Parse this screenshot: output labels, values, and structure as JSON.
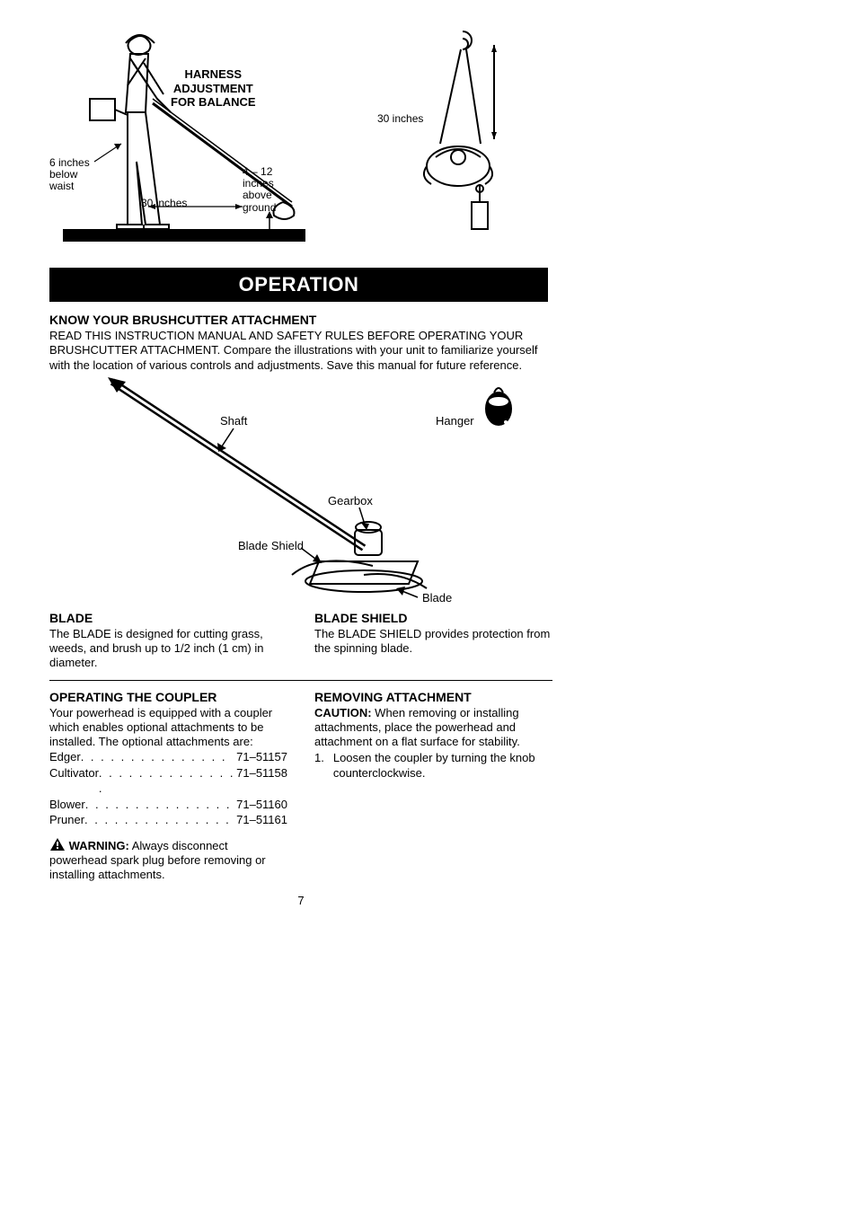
{
  "colors": {
    "text": "#000000",
    "bg": "#ffffff",
    "band_bg": "#000000",
    "band_fg": "#ffffff"
  },
  "top": {
    "harness_title_l1": "HARNESS",
    "harness_title_l2": "ADJUSTMENT",
    "harness_title_l3": "FOR BALANCE",
    "six_inches_l1": "6 inches",
    "six_inches_l2": "below",
    "six_inches_l3": "waist",
    "above_l1": "4 – 12",
    "above_l2": "inches",
    "above_l3": "above",
    "above_l4": "ground",
    "thirty_a": "30 inches",
    "thirty_b": "30 inches"
  },
  "band": "OPERATION",
  "know": {
    "title": "KNOW YOUR BRUSHCUTTER ATTACHMENT",
    "body": "READ THIS INSTRUCTION MANUAL AND SAFETY RULES BEFORE OPERATING YOUR BRUSHCUTTER ATTACHMENT. Compare the illustrations with your unit to familiarize yourself with the location of various controls and adjustments. Save this manual for future reference."
  },
  "diagram2": {
    "shaft": "Shaft",
    "hanger": "Hanger",
    "gearbox": "Gearbox",
    "blade_shield": "Blade Shield",
    "blade": "Blade"
  },
  "blade_sec": {
    "title": "BLADE",
    "body": "The BLADE is designed for cutting grass, weeds, and brush up to 1/2 inch (1 cm) in diameter."
  },
  "shield_sec": {
    "title": "BLADE SHIELD",
    "body": "The BLADE SHIELD provides protection from the spinning blade."
  },
  "coupler_sec": {
    "title": "OPERATING THE COUPLER",
    "intro": "Your powerhead is equipped with a coupler which enables optional attachments to be installed.  The optional attachments are:",
    "items": [
      {
        "name": "Edger",
        "num": "71–51157"
      },
      {
        "name": "Cultivator",
        "num": "71–51158"
      },
      {
        "name": "Blower",
        "num": "71–51160"
      },
      {
        "name": "Pruner",
        "num": "71–51161"
      }
    ],
    "warn_label": "WARNING:",
    "warn_body": "Always disconnect powerhead spark plug before removing or installing attachments."
  },
  "remove_sec": {
    "title": "REMOVING ATTACHMENT",
    "caution_label": "CAUTION:",
    "caution_body": "When removing or installing attachments, place the powerhead and attachment on a flat surface for stability.",
    "step1_num": "1.",
    "step1_body": "Loosen the coupler by turning the knob counterclockwise."
  },
  "page_number": "7"
}
